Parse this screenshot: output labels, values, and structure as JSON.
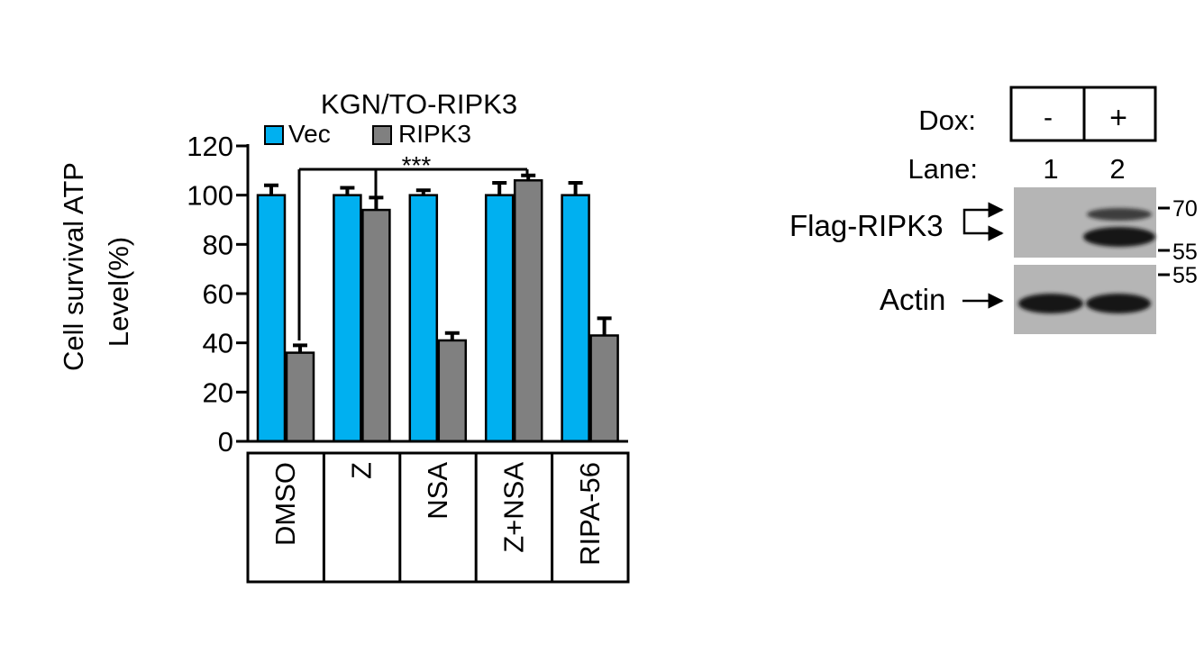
{
  "chart_data": {
    "type": "bar",
    "title": "KGN/TO-RIPK3",
    "ylabel_line1": "Cell survival ATP",
    "ylabel_line2": "Level(%)",
    "ylim": [
      0,
      120
    ],
    "yticks": [
      "0",
      "20",
      "40",
      "60",
      "80",
      "100",
      "120"
    ],
    "categories": [
      "DMSO",
      "Z",
      "NSA",
      "Z+NSA",
      "RIPA-56"
    ],
    "series": [
      {
        "name": "Vec",
        "color": "#00B0F0",
        "values": [
          100,
          100,
          100,
          100,
          100
        ],
        "errors": [
          4,
          3,
          2,
          5,
          5
        ]
      },
      {
        "name": "RIPK3",
        "color": "#808080",
        "values": [
          36,
          94,
          41,
          106,
          43
        ],
        "errors": [
          3,
          5,
          3,
          2,
          7
        ]
      }
    ],
    "significance": {
      "label": "***",
      "from": "DMSO",
      "to": [
        "Z",
        "Z+NSA"
      ]
    }
  },
  "blot": {
    "dox_label": "Dox:",
    "dox_values": [
      "-",
      "+"
    ],
    "lane_label": "Lane:",
    "lanes": [
      "1",
      "2"
    ],
    "band_labels": {
      "flag": "Flag-RIPK3",
      "actin": "Actin"
    },
    "markers": {
      "top_upper": "70",
      "top_lower": "55",
      "bottom": "55"
    },
    "colors": {
      "membrane": "#b5b5b5",
      "band": "#151515"
    }
  }
}
